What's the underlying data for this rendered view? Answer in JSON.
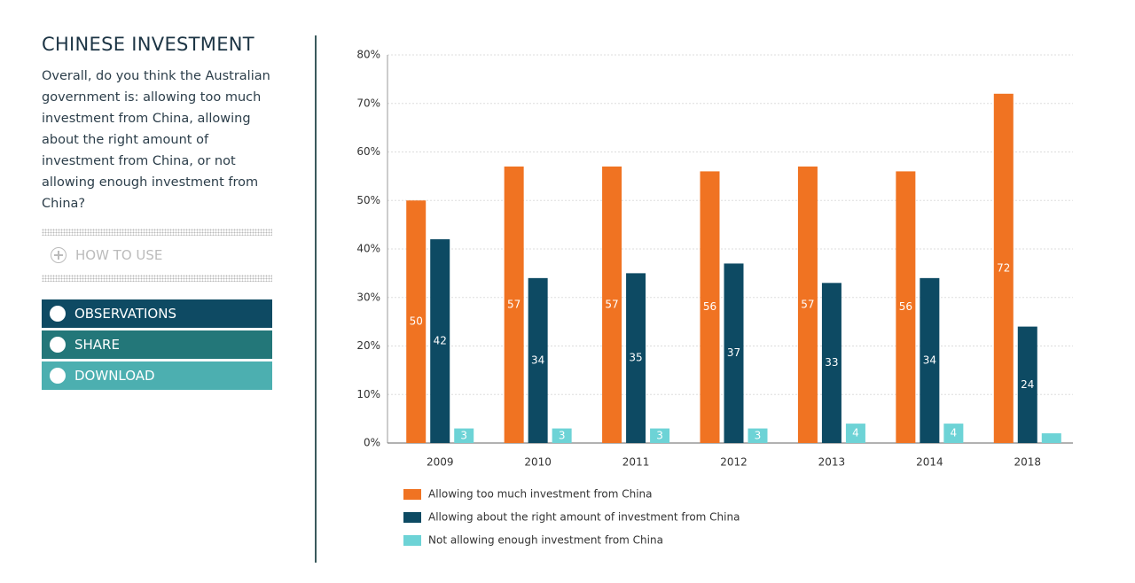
{
  "sidebar": {
    "title": "CHINESE INVESTMENT",
    "question": "Overall, do you think the Australian government is: allowing too much investment from China, allowing about the right amount of investment from China, or not allowing enough investment from China?",
    "how_to_use": "HOW TO USE",
    "buttons": [
      "OBSERVATIONS",
      "SHARE",
      "DOWNLOAD"
    ]
  },
  "chart_data": {
    "type": "bar",
    "categories": [
      "2009",
      "2010",
      "2011",
      "2012",
      "2013",
      "2014",
      "2018"
    ],
    "series": [
      {
        "name": "Allowing too much investment from China",
        "color": "#f07322",
        "values": [
          50,
          57,
          57,
          56,
          57,
          56,
          72
        ]
      },
      {
        "name": "Allowing about the right amount of investment from China",
        "color": "#0d4a63",
        "values": [
          42,
          34,
          35,
          37,
          33,
          34,
          24
        ]
      },
      {
        "name": "Not allowing enough investment from China",
        "color": "#6dd3d6",
        "values": [
          3,
          3,
          3,
          3,
          4,
          4,
          2
        ],
        "value_labels": [
          "3",
          "3",
          "3",
          "3",
          "4",
          "4",
          null
        ]
      }
    ],
    "ylim": [
      0,
      80
    ],
    "yticks": [
      {
        "value": 0,
        "label": "0%"
      },
      {
        "value": 10,
        "label": "10%"
      },
      {
        "value": 20,
        "label": "20%"
      },
      {
        "value": 30,
        "label": "30%"
      },
      {
        "value": 40,
        "label": "40%"
      },
      {
        "value": 50,
        "label": "50%"
      },
      {
        "value": 60,
        "label": "60%"
      },
      {
        "value": 70,
        "label": "70%"
      },
      {
        "value": 80,
        "label": "80%"
      }
    ],
    "grid": true
  }
}
